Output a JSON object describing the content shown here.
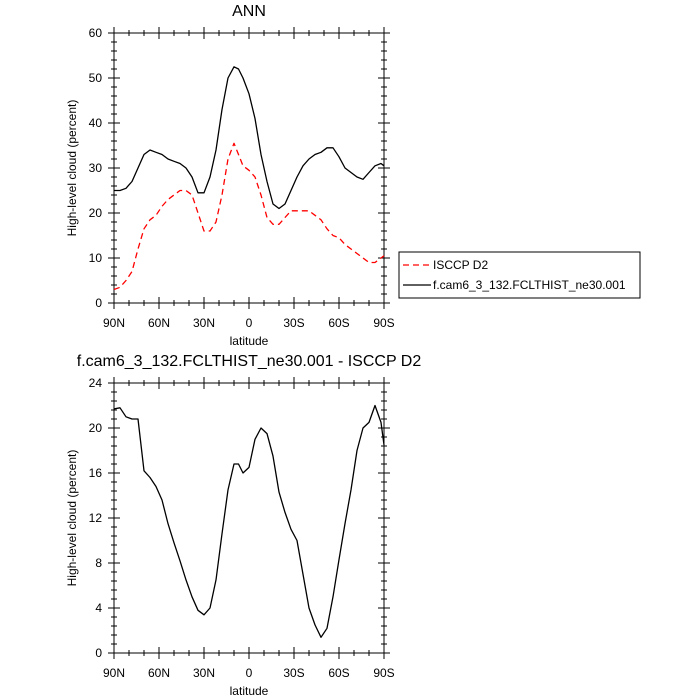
{
  "chart_data": [
    {
      "type": "line",
      "title": "ANN",
      "xlabel": "latitude",
      "ylabel": "High-level cloud (percent)",
      "xlim": [
        -90,
        90
      ],
      "ylim": [
        0,
        60
      ],
      "x_ticks": [
        "90N",
        "60N",
        "30N",
        "0",
        "30S",
        "60S",
        "90S"
      ],
      "y_ticks": [
        "0",
        "10",
        "20",
        "30",
        "40",
        "50",
        "60"
      ],
      "legend": "right",
      "series": [
        {
          "name": "ISCCP D2",
          "color": "#ff0000",
          "dash": "dashed",
          "x": [
            -90,
            -86,
            -82,
            -78,
            -74,
            -70,
            -66,
            -62,
            -58,
            -54,
            -50,
            -46,
            -42,
            -38,
            -34,
            -30,
            -26,
            -22,
            -18,
            -14,
            -10,
            -7,
            -4,
            0,
            4,
            8,
            12,
            16,
            20,
            24,
            28,
            32,
            36,
            40,
            44,
            48,
            52,
            56,
            60,
            64,
            68,
            72,
            76,
            80,
            84,
            88,
            90
          ],
          "values": [
            3,
            3.5,
            5,
            7,
            12,
            16.5,
            18.5,
            19.5,
            21.5,
            23,
            24,
            25,
            25,
            24,
            20,
            16,
            16,
            18,
            24,
            32,
            35.5,
            33,
            30.5,
            29.5,
            28,
            24,
            19,
            17.5,
            17.5,
            19,
            20.5,
            20.5,
            20.5,
            20.5,
            19.5,
            18.5,
            16.5,
            15,
            14.5,
            13,
            12,
            11,
            10,
            9,
            9,
            10,
            10.5
          ]
        },
        {
          "name": "f.cam6_3_132.FCLTHIST_ne30.001",
          "color": "#000000",
          "dash": "solid",
          "x": [
            -90,
            -86,
            -82,
            -78,
            -74,
            -70,
            -66,
            -62,
            -58,
            -54,
            -50,
            -46,
            -42,
            -38,
            -34,
            -30,
            -26,
            -22,
            -18,
            -14,
            -10,
            -7,
            -4,
            0,
            4,
            8,
            12,
            16,
            20,
            24,
            28,
            32,
            36,
            40,
            44,
            48,
            52,
            56,
            60,
            64,
            68,
            72,
            76,
            80,
            84,
            88,
            90
          ],
          "values": [
            25,
            25,
            25.5,
            27,
            30,
            33,
            34,
            33.5,
            33,
            32,
            31.5,
            31,
            30,
            28,
            24.5,
            24.5,
            28,
            34,
            43,
            50,
            52.5,
            52,
            50,
            46.5,
            41,
            33,
            27,
            22,
            21,
            22,
            25,
            28,
            30.5,
            32,
            33,
            33.5,
            34.5,
            34.5,
            32.5,
            30,
            29,
            28,
            27.5,
            29,
            30.5,
            31,
            30.5
          ]
        }
      ]
    },
    {
      "type": "line",
      "title": "f.cam6_3_132.FCLTHIST_ne30.001 - ISCCP D2",
      "xlabel": "latitude",
      "ylabel": "High-level cloud (percent)",
      "xlim": [
        -90,
        90
      ],
      "ylim": [
        0,
        24
      ],
      "x_ticks": [
        "90N",
        "60N",
        "30N",
        "0",
        "30S",
        "60S",
        "90S"
      ],
      "y_ticks": [
        "0",
        "4",
        "8",
        "12",
        "16",
        "20",
        "24"
      ],
      "series": [
        {
          "color": "#000000",
          "x": [
            -90,
            -86,
            -82,
            -78,
            -74,
            -70,
            -66,
            -62,
            -58,
            -54,
            -50,
            -46,
            -42,
            -38,
            -34,
            -30,
            -26,
            -22,
            -18,
            -14,
            -10,
            -7,
            -4,
            0,
            4,
            8,
            12,
            16,
            20,
            24,
            28,
            32,
            36,
            40,
            44,
            48,
            52,
            56,
            60,
            64,
            68,
            72,
            76,
            80,
            84,
            88,
            90
          ],
          "values": [
            21.7,
            21.8,
            21,
            20.8,
            20.8,
            16.2,
            15.6,
            14.8,
            13.6,
            11.5,
            9.8,
            8.2,
            6.5,
            5,
            3.8,
            3.4,
            4,
            6.5,
            10.6,
            14.5,
            16.8,
            16.8,
            16,
            16.5,
            19,
            20,
            19.5,
            17.5,
            14.3,
            12.5,
            11,
            10,
            7,
            4,
            2.5,
            1.4,
            2.2,
            5,
            8.3,
            11.5,
            14.5,
            18,
            20,
            20.5,
            22,
            20.5,
            18.5
          ]
        }
      ]
    }
  ]
}
